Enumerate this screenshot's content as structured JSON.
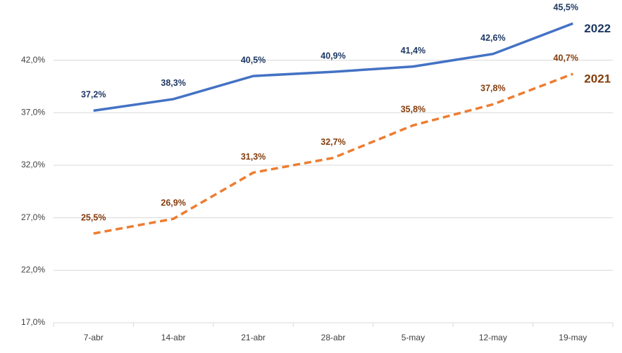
{
  "chart_data": {
    "type": "line",
    "categories": [
      "7-abr",
      "14-abr",
      "21-abr",
      "28-abr",
      "5-may",
      "12-may",
      "19-may"
    ],
    "series": [
      {
        "name": "2022",
        "color": "#4472c4",
        "label_color": "#1f3864",
        "dashed": false,
        "values": [
          37.2,
          38.3,
          40.5,
          40.9,
          41.4,
          42.6,
          45.5
        ],
        "value_labels": [
          "37,2%",
          "38,3%",
          "40,5%",
          "40,9%",
          "41,4%",
          "42,6%",
          "45,5%"
        ]
      },
      {
        "name": "2021",
        "color": "#ed7d31",
        "label_color": "#843c0c",
        "dashed": true,
        "values": [
          25.5,
          26.9,
          31.3,
          32.7,
          35.8,
          37.8,
          40.7
        ],
        "value_labels": [
          "25,5%",
          "26,9%",
          "31,3%",
          "32,7%",
          "35,8%",
          "37,8%",
          "40,7%"
        ]
      }
    ],
    "ylim": [
      17,
      47
    ],
    "yticks": [
      {
        "value": 17,
        "label": "17,0%"
      },
      {
        "value": 22,
        "label": "22,0%"
      },
      {
        "value": 27,
        "label": "27,0%"
      },
      {
        "value": 32,
        "label": "32,0%"
      },
      {
        "value": 37,
        "label": "37,0%"
      },
      {
        "value": 42,
        "label": "42,0%"
      }
    ],
    "grid": true
  }
}
